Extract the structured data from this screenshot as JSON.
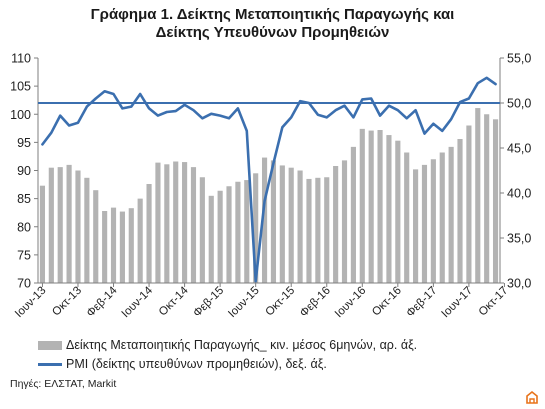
{
  "chart_data": {
    "type": "bar+line",
    "title_lines": [
      "Γράφημα 1. Δείκτης Μεταποιητικής Παραγωγής και",
      "Δείκτης Υπευθύνων Προμηθειών"
    ],
    "left_axis": {
      "min": 70,
      "max": 110,
      "ticks": [
        "70",
        "75",
        "80",
        "85",
        "90",
        "95",
        "100",
        "105",
        "110"
      ]
    },
    "right_axis": {
      "min": 30,
      "max": 55,
      "ticks": [
        "30,0",
        "35,0",
        "40,0",
        "45,0",
        "50,0",
        "55,0"
      ]
    },
    "x_tick_labels": [
      "Ιουν-13",
      "Οκτ-13",
      "Φεβ-14",
      "Ιουν-14",
      "Οκτ-14",
      "Φεβ-15",
      "Ιουν-15",
      "Οκτ-15",
      "Φεβ-16",
      "Ιουν-16",
      "Οκτ-16",
      "Φεβ-17",
      "Ιουν-17",
      "Οκτ-17"
    ],
    "x_tick_every": 4,
    "bars": {
      "name": "Δείκτης Μεταποιητικής Παραγωγής_ κιν. μέσος 6μηνών, αρ. άξ.",
      "axis": "left",
      "color": "#b3b3b3",
      "values": [
        87.3,
        90.5,
        90.6,
        91.0,
        90.0,
        88.7,
        86.5,
        82.8,
        83.4,
        82.7,
        83.3,
        85.0,
        87.6,
        91.4,
        91.1,
        91.6,
        91.5,
        90.6,
        88.8,
        85.5,
        86.4,
        87.2,
        88.0,
        88.3,
        89.5,
        92.3,
        91.8,
        90.9,
        90.5,
        90.0,
        88.5,
        88.7,
        88.8,
        90.8,
        91.8,
        94.2,
        97.4,
        97.1,
        97.2,
        96.3,
        95.3,
        93.2,
        90.2,
        91.0,
        92.0,
        93.2,
        94.2,
        95.6,
        98.0,
        101.1,
        100.0,
        99.1
      ]
    },
    "line": {
      "name": "PMI (δείκτης υπευθύνων προμηθειών), δεξ. άξ.",
      "axis": "right",
      "color": "#3b6faf",
      "values": [
        45.4,
        46.7,
        48.6,
        47.5,
        47.8,
        49.6,
        50.5,
        51.3,
        51.0,
        49.4,
        49.6,
        51.0,
        49.4,
        48.6,
        49.0,
        49.1,
        49.8,
        49.2,
        48.3,
        48.8,
        48.6,
        48.3,
        49.4,
        46.9,
        30.2,
        39.1,
        43.3,
        47.3,
        48.4,
        50.2,
        50.0,
        48.7,
        48.4,
        49.2,
        49.7,
        48.4,
        50.4,
        50.5,
        48.6,
        49.7,
        49.2,
        48.3,
        49.2,
        46.6,
        47.7,
        46.9,
        48.2,
        50.1,
        50.5,
        52.2,
        52.8,
        52.1
      ]
    },
    "reference_line": {
      "axis": "right",
      "value": 50.0,
      "color": "#3b6faf"
    },
    "grid": false,
    "legend_position": "bottom"
  },
  "legend": {
    "bars_label": "Δείκτης Μεταποιητικής Παραγωγής_ κιν. μέσος 6μηνών, αρ. άξ.",
    "line_label": "PMI (δείκτης υπευθύνων προμηθειών), δεξ. άξ."
  },
  "source": "Πηγές: ΕΛΣΤΑΤ, Markit",
  "colors": {
    "bar": "#b3b3b3",
    "line": "#3b6faf",
    "axis": "#7f7f7f",
    "logo": "#e8731a"
  },
  "icons": {
    "corner_logo": "brand-logo-icon"
  }
}
